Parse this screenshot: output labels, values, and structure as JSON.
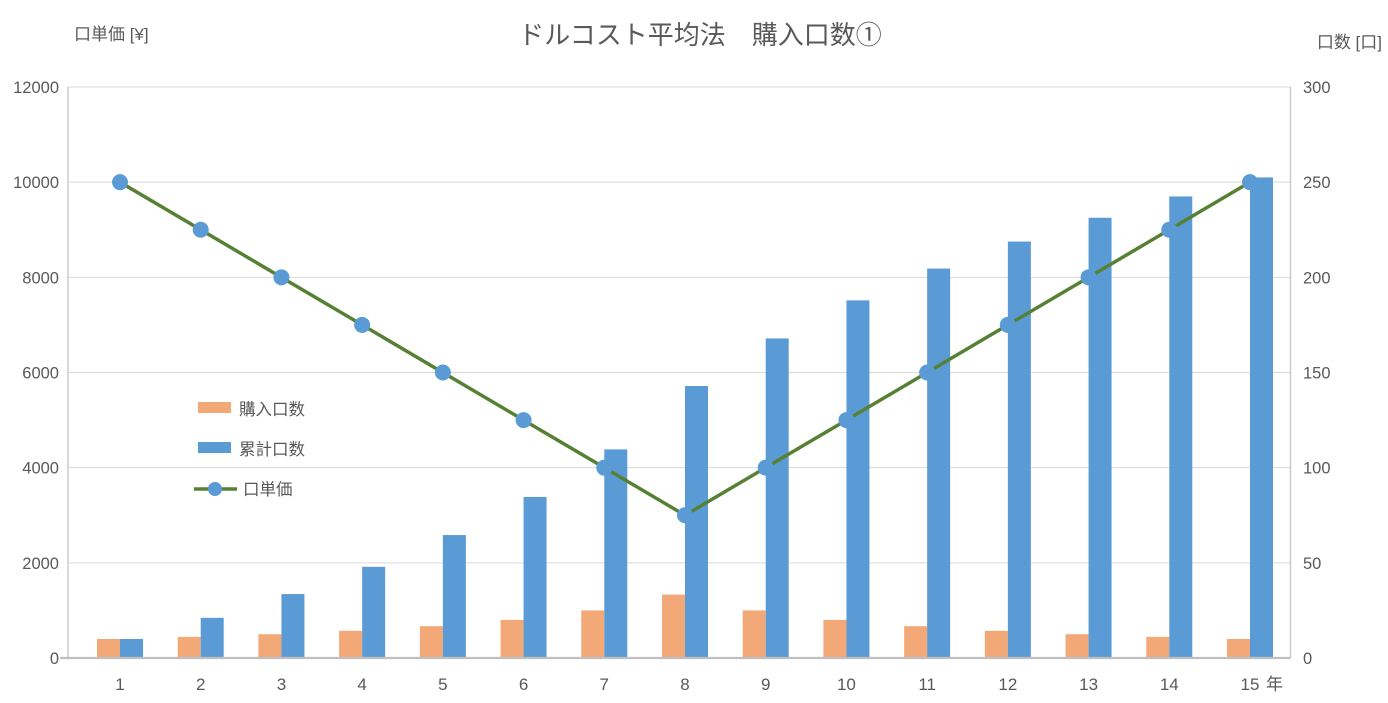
{
  "title": "ドルコスト平均法　購入口数①",
  "x_axis_suffix": "年",
  "chart_data": {
    "type": "combo-bar-line",
    "categories": [
      1,
      2,
      3,
      4,
      5,
      6,
      7,
      8,
      9,
      10,
      11,
      12,
      13,
      14,
      15
    ],
    "x_suffix_label": "年",
    "left_axis": {
      "title": "口単価 [¥]",
      "min": 0,
      "max": 12000,
      "step": 2000,
      "ticks": [
        0,
        2000,
        4000,
        6000,
        8000,
        10000,
        12000
      ]
    },
    "right_axis": {
      "title": "口数 [口]",
      "min": 0,
      "max": 300,
      "step": 50,
      "ticks": [
        0,
        50,
        100,
        150,
        200,
        250,
        300
      ]
    },
    "series": [
      {
        "name": "購入口数",
        "type": "bar",
        "axis": "right",
        "color": "#F2A877",
        "values": [
          10,
          11.1,
          12.5,
          14.3,
          16.7,
          20,
          25,
          33.3,
          25,
          20,
          16.7,
          14.3,
          12.5,
          11.1,
          10
        ]
      },
      {
        "name": "累計口数",
        "type": "bar",
        "axis": "right",
        "color": "#5B9BD5",
        "values": [
          10,
          21.1,
          33.6,
          47.9,
          64.6,
          84.6,
          109.6,
          142.9,
          167.9,
          187.9,
          204.6,
          218.8,
          231.3,
          242.5,
          252.5
        ]
      },
      {
        "name": "口単価",
        "type": "line",
        "axis": "left",
        "color": "#568135",
        "marker_color": "#5B9BD5",
        "values": [
          10000,
          9000,
          8000,
          7000,
          6000,
          5000,
          4000,
          3000,
          4000,
          5000,
          6000,
          7000,
          8000,
          9000,
          10000
        ]
      }
    ],
    "legend_position": "middle-left",
    "grid": "horizontal-only",
    "colors": {
      "gridline": "#D9D9D9",
      "axis_line_bottom": "#BFBFBF",
      "axis_line_sides": "#C9C9C9",
      "text": "#595959"
    }
  }
}
